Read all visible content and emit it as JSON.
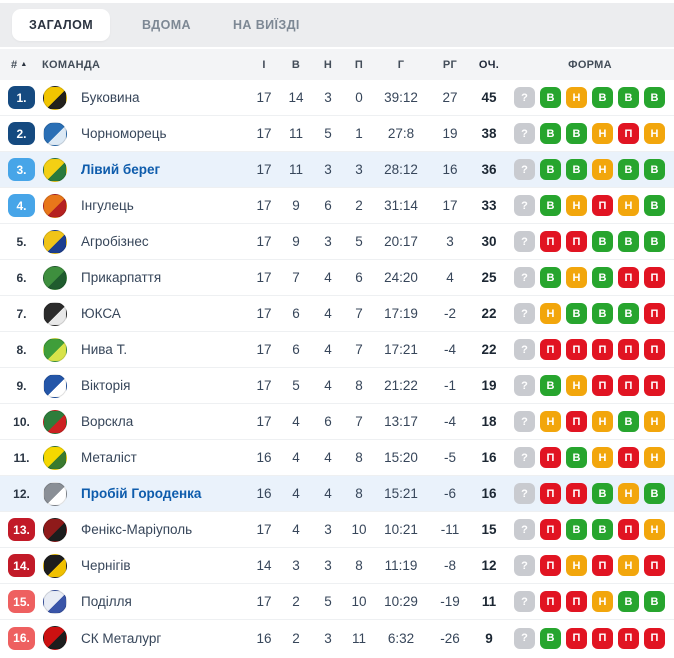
{
  "tabs": [
    {
      "key": "overall",
      "label": "ЗАГАЛОМ",
      "active": true
    },
    {
      "key": "home",
      "label": "ВДОМА",
      "active": false
    },
    {
      "key": "away",
      "label": "НА ВИЇЗДІ",
      "active": false
    }
  ],
  "header": {
    "rank": "#",
    "sort_icon": "▲",
    "team": "КОМАНДА",
    "played": "І",
    "won": "В",
    "drawn": "Н",
    "lost": "П",
    "goals": "Г",
    "goal_diff": "РГ",
    "points": "ОЧ.",
    "form": "ФОРМА"
  },
  "colors": {
    "badge": {
      "blue-dark": "#154a80",
      "blue-light": "#47a5e8",
      "red-dark": "#c21a28",
      "red-light": "#ee6060",
      "none": "transparent"
    },
    "form": {
      "?": "#c9cbd0",
      "В": "#27a52e",
      "Н": "#f2a60c",
      "П": "#e11422"
    },
    "highlight_row_bg": "#eaf2fb",
    "highlight_team_color": "#0e5cac"
  },
  "rows": [
    {
      "rank": "1.",
      "badge": "blue-dark",
      "team": "Буковина",
      "logo": [
        "#f2c500",
        "#23211c"
      ],
      "played": "17",
      "won": "14",
      "drawn": "3",
      "lost": "0",
      "goals": "39:12",
      "goal_diff": "27",
      "points": "45",
      "highlighted": false,
      "form": [
        "?",
        "В",
        "Н",
        "В",
        "В",
        "В"
      ]
    },
    {
      "rank": "2.",
      "badge": "blue-dark",
      "team": "Чорноморець",
      "logo": [
        "#2a6fb5",
        "#dce9f5"
      ],
      "played": "17",
      "won": "11",
      "drawn": "5",
      "lost": "1",
      "goals": "27:8",
      "goal_diff": "19",
      "points": "38",
      "highlighted": false,
      "form": [
        "?",
        "В",
        "В",
        "Н",
        "П",
        "Н"
      ]
    },
    {
      "rank": "3.",
      "badge": "blue-light",
      "team": "Лівий берег",
      "logo": [
        "#f3d014",
        "#2a7a3c"
      ],
      "played": "17",
      "won": "11",
      "drawn": "3",
      "lost": "3",
      "goals": "28:12",
      "goal_diff": "16",
      "points": "36",
      "highlighted": true,
      "form": [
        "?",
        "В",
        "В",
        "Н",
        "В",
        "В"
      ]
    },
    {
      "rank": "4.",
      "badge": "blue-light",
      "team": "Інгулець",
      "logo": [
        "#e8761a",
        "#b52020"
      ],
      "played": "17",
      "won": "9",
      "drawn": "6",
      "lost": "2",
      "goals": "31:14",
      "goal_diff": "17",
      "points": "33",
      "highlighted": false,
      "form": [
        "?",
        "В",
        "Н",
        "П",
        "Н",
        "В"
      ]
    },
    {
      "rank": "5.",
      "badge": "none",
      "team": "Агробізнес",
      "logo": [
        "#f0c419",
        "#1d3f8f"
      ],
      "played": "17",
      "won": "9",
      "drawn": "3",
      "lost": "5",
      "goals": "20:17",
      "goal_diff": "3",
      "points": "30",
      "highlighted": false,
      "form": [
        "?",
        "П",
        "П",
        "В",
        "В",
        "В"
      ]
    },
    {
      "rank": "6.",
      "badge": "none",
      "team": "Прикарпаття",
      "logo": [
        "#3e8f3e",
        "#1f5c2e"
      ],
      "played": "17",
      "won": "7",
      "drawn": "4",
      "lost": "6",
      "goals": "24:20",
      "goal_diff": "4",
      "points": "25",
      "highlighted": false,
      "form": [
        "?",
        "В",
        "Н",
        "В",
        "П",
        "П"
      ]
    },
    {
      "rank": "7.",
      "badge": "none",
      "team": "ЮКСА",
      "logo": [
        "#2b2b2b",
        "#e8e8e8"
      ],
      "played": "17",
      "won": "6",
      "drawn": "4",
      "lost": "7",
      "goals": "17:19",
      "goal_diff": "-2",
      "points": "22",
      "highlighted": false,
      "form": [
        "?",
        "Н",
        "В",
        "В",
        "В",
        "П"
      ]
    },
    {
      "rank": "8.",
      "badge": "none",
      "team": "Нива Т.",
      "logo": [
        "#3f9e3a",
        "#d8e34a"
      ],
      "played": "17",
      "won": "6",
      "drawn": "4",
      "lost": "7",
      "goals": "17:21",
      "goal_diff": "-4",
      "points": "22",
      "highlighted": false,
      "form": [
        "?",
        "П",
        "П",
        "П",
        "П",
        "П"
      ]
    },
    {
      "rank": "9.",
      "badge": "none",
      "team": "Вікторія",
      "logo": [
        "#2456a8",
        "#ffffff"
      ],
      "played": "17",
      "won": "5",
      "drawn": "4",
      "lost": "8",
      "goals": "21:22",
      "goal_diff": "-1",
      "points": "19",
      "highlighted": false,
      "form": [
        "?",
        "В",
        "Н",
        "П",
        "П",
        "П"
      ]
    },
    {
      "rank": "10.",
      "badge": "none",
      "team": "Ворскла",
      "logo": [
        "#2e7d3b",
        "#cc2222"
      ],
      "played": "17",
      "won": "4",
      "drawn": "6",
      "lost": "7",
      "goals": "13:17",
      "goal_diff": "-4",
      "points": "18",
      "highlighted": false,
      "form": [
        "?",
        "Н",
        "П",
        "Н",
        "В",
        "Н"
      ]
    },
    {
      "rank": "11.",
      "badge": "none",
      "team": "Металіст",
      "logo": [
        "#f5d800",
        "#3a7a2e"
      ],
      "played": "16",
      "won": "4",
      "drawn": "4",
      "lost": "8",
      "goals": "15:20",
      "goal_diff": "-5",
      "points": "16",
      "highlighted": false,
      "form": [
        "?",
        "П",
        "В",
        "Н",
        "П",
        "Н"
      ]
    },
    {
      "rank": "12.",
      "badge": "none",
      "team": "Пробій Городенка",
      "logo": [
        "#8a8f96",
        "#ffffff"
      ],
      "played": "16",
      "won": "4",
      "drawn": "4",
      "lost": "8",
      "goals": "15:21",
      "goal_diff": "-6",
      "points": "16",
      "highlighted": true,
      "form": [
        "?",
        "П",
        "П",
        "В",
        "Н",
        "В"
      ]
    },
    {
      "rank": "13.",
      "badge": "red-dark",
      "team": "Фенікс-Маріуполь",
      "logo": [
        "#8f1a1a",
        "#1d1d1d"
      ],
      "played": "17",
      "won": "4",
      "drawn": "3",
      "lost": "10",
      "goals": "10:21",
      "goal_diff": "-11",
      "points": "15",
      "highlighted": false,
      "form": [
        "?",
        "П",
        "В",
        "В",
        "П",
        "Н"
      ]
    },
    {
      "rank": "14.",
      "badge": "red-dark",
      "team": "Чернігів",
      "logo": [
        "#1d1d1d",
        "#f0c000"
      ],
      "played": "14",
      "won": "3",
      "drawn": "3",
      "lost": "8",
      "goals": "11:19",
      "goal_diff": "-8",
      "points": "12",
      "highlighted": false,
      "form": [
        "?",
        "П",
        "Н",
        "П",
        "Н",
        "П"
      ]
    },
    {
      "rank": "15.",
      "badge": "red-light",
      "team": "Поділля",
      "logo": [
        "#e8ecf5",
        "#3a55a8"
      ],
      "played": "17",
      "won": "2",
      "drawn": "5",
      "lost": "10",
      "goals": "10:29",
      "goal_diff": "-19",
      "points": "11",
      "highlighted": false,
      "form": [
        "?",
        "П",
        "П",
        "Н",
        "В",
        "В"
      ]
    },
    {
      "rank": "16.",
      "badge": "red-light",
      "team": "СК Металург",
      "logo": [
        "#cc1111",
        "#1d1d1d"
      ],
      "played": "16",
      "won": "2",
      "drawn": "3",
      "lost": "11",
      "goals": "6:32",
      "goal_diff": "-26",
      "points": "9",
      "highlighted": false,
      "form": [
        "?",
        "В",
        "П",
        "П",
        "П",
        "П"
      ]
    }
  ]
}
